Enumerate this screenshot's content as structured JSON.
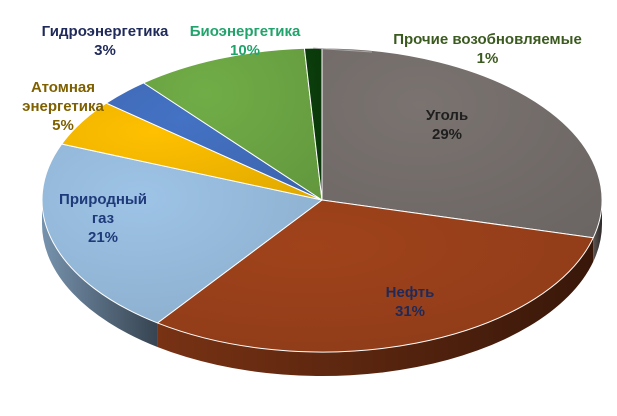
{
  "chart_data": {
    "type": "pie",
    "title": "",
    "unit": "%",
    "slices": [
      {
        "name": "Уголь",
        "value": 29,
        "value_label": "29%",
        "color": "#7a7370",
        "label_color": "#1f1f1f"
      },
      {
        "name": "Нефть",
        "value": 31,
        "value_label": "31%",
        "color": "#a0431b",
        "label_color": "#1f2a5a"
      },
      {
        "name": "Природный газ",
        "name_lines": [
          "Природный",
          "газ"
        ],
        "value": 21,
        "value_label": "21%",
        "color": "#9dc3e6",
        "label_color": "#1f3a7a"
      },
      {
        "name": "Атомная энергетика",
        "name_lines": [
          "Атомная",
          "энергетика"
        ],
        "value": 5,
        "value_label": "5%",
        "color": "#ffc000",
        "label_color": "#7f6000"
      },
      {
        "name": "Гидроэнергетика",
        "value": 3,
        "value_label": "3%",
        "color": "#4472c4",
        "label_color": "#1f2a5a"
      },
      {
        "name": "Биоэнергетика",
        "value": 10,
        "value_label": "10%",
        "color": "#70ad47",
        "label_color": "#22a36b"
      },
      {
        "name": "Прочие возобновляемые",
        "value": 1,
        "value_label": "1%",
        "color": "#0b3d0b",
        "label_color": "#3b5a1f"
      }
    ],
    "legend": "none",
    "style": "3d-pie"
  }
}
